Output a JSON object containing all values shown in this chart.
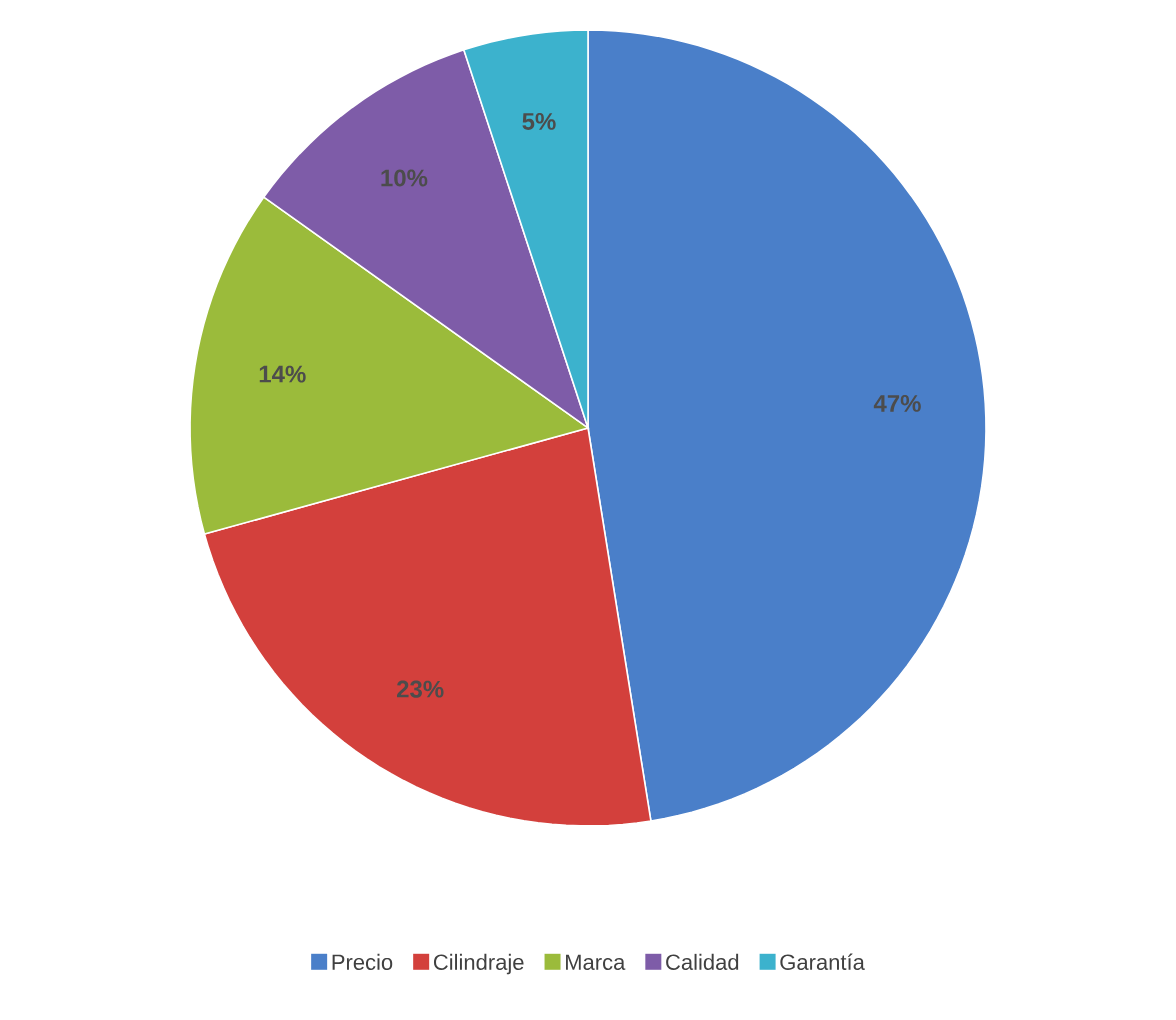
{
  "chart_data": {
    "type": "pie",
    "categories": [
      "Precio",
      "Cilindraje",
      "Marca",
      "Calidad",
      "Garantía"
    ],
    "values": [
      47,
      23,
      14,
      10,
      5
    ],
    "value_labels": [
      "47%",
      "23%",
      "14%",
      "10%",
      "5%"
    ],
    "colors": [
      "#4a7fc9",
      "#d3403c",
      "#9bbb3b",
      "#7e5ca8",
      "#3cb2cd"
    ],
    "legend": "bottom"
  }
}
